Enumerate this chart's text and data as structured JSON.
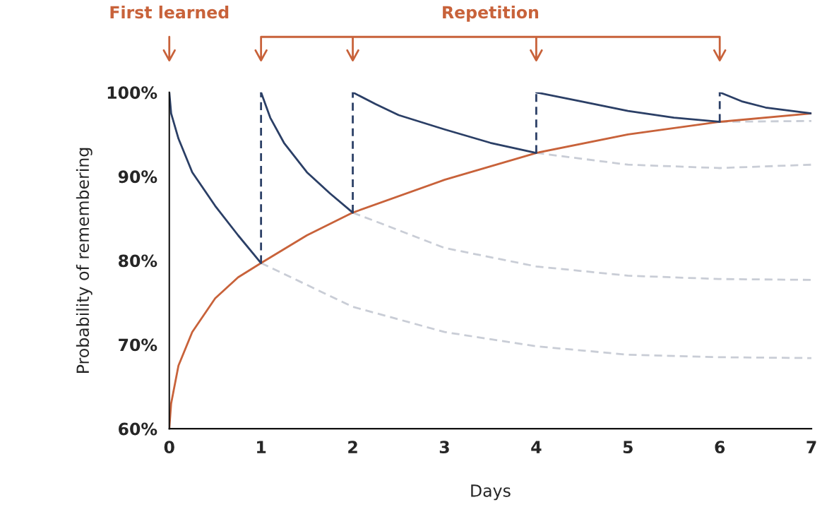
{
  "chart_data": {
    "type": "line",
    "xlabel": "Days",
    "ylabel": "Probability of remembering",
    "xlim": [
      0,
      7
    ],
    "ylim": [
      60,
      100
    ],
    "xticks": [
      0,
      1,
      2,
      3,
      4,
      5,
      6,
      7
    ],
    "yticks": [
      {
        "value": 60,
        "label": "60%"
      },
      {
        "value": 70,
        "label": "70%"
      },
      {
        "value": 80,
        "label": "80%"
      },
      {
        "value": 90,
        "label": "90%"
      },
      {
        "value": 100,
        "label": "100%"
      }
    ],
    "grid": false,
    "line_style": "solid",
    "annotations": [
      "First learned",
      "Repetition"
    ],
    "series": [
      {
        "color": "#c9cdd6",
        "line_style": "dashed",
        "x": [
          1,
          2,
          3,
          4,
          5,
          6,
          7
        ],
        "values": [
          79.7,
          74.5,
          71.5,
          69.8,
          68.8,
          68.5,
          68.4
        ]
      },
      {
        "color": "#c9cdd6",
        "line_style": "dashed",
        "x": [
          2,
          3,
          4,
          5,
          6,
          7
        ],
        "values": [
          85.7,
          81.5,
          79.3,
          78.2,
          77.8,
          77.7
        ]
      },
      {
        "color": "#c9cdd6",
        "line_style": "dashed",
        "x": [
          4,
          5,
          6,
          7
        ],
        "values": [
          92.8,
          91.4,
          91.0,
          91.4
        ]
      },
      {
        "color": "#c9cdd6",
        "line_style": "dashed",
        "x": [
          6,
          7
        ],
        "values": [
          96.5,
          96.6
        ]
      },
      {
        "color": "#c8623a",
        "x": [
          0,
          0.02,
          0.1,
          0.25,
          0.5,
          0.75,
          1,
          1.5,
          2,
          3,
          4,
          5,
          6,
          7
        ],
        "values": [
          60,
          63,
          67.5,
          71.5,
          75.5,
          78,
          79.7,
          83,
          85.7,
          89.6,
          92.8,
          95,
          96.5,
          97.5
        ]
      },
      {
        "color": "#2b3f66",
        "x": [
          0,
          0.02,
          0.1,
          0.25,
          0.5,
          0.75,
          1
        ],
        "values": [
          100,
          97.5,
          94.5,
          90.5,
          86.5,
          83,
          79.7
        ]
      },
      {
        "color": "#2b3f66",
        "x": [
          1,
          1.1,
          1.25,
          1.5,
          1.75,
          2
        ],
        "values": [
          100,
          97,
          94,
          90.5,
          88,
          85.7
        ]
      },
      {
        "color": "#2b3f66",
        "x": [
          2,
          2.25,
          2.5,
          3,
          3.5,
          4
        ],
        "values": [
          100,
          98.6,
          97.3,
          95.6,
          94,
          92.8
        ]
      },
      {
        "color": "#2b3f66",
        "x": [
          4,
          4.5,
          5,
          5.5,
          6
        ],
        "values": [
          100,
          98.9,
          97.8,
          97,
          96.5
        ]
      },
      {
        "color": "#2b3f66",
        "x": [
          6,
          6.25,
          6.5,
          7
        ],
        "values": [
          100,
          98.9,
          98.2,
          97.5
        ]
      },
      {
        "color": "#2b3f66",
        "line_style": "dashed",
        "x": [
          1,
          1
        ],
        "values": [
          79.7,
          100
        ]
      },
      {
        "color": "#2b3f66",
        "line_style": "dashed",
        "x": [
          2,
          2
        ],
        "values": [
          85.7,
          100
        ]
      },
      {
        "color": "#2b3f66",
        "line_style": "dashed",
        "x": [
          4,
          4
        ],
        "values": [
          92.8,
          100
        ]
      },
      {
        "color": "#2b3f66",
        "line_style": "dashed",
        "x": [
          6,
          6
        ],
        "values": [
          96.5,
          100
        ]
      }
    ]
  }
}
